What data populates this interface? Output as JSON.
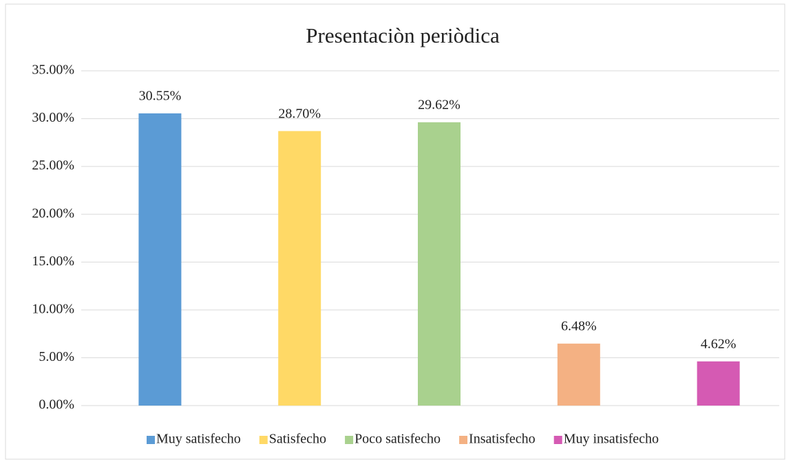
{
  "chart_data": {
    "type": "bar",
    "title": "Presentaciòn periòdica",
    "categories": [
      null
    ],
    "series": [
      {
        "name": "Muy satisfecho",
        "color": "#5b9bd5",
        "values": [
          30.55
        ],
        "value_labels": [
          "30.55%"
        ]
      },
      {
        "name": "Satisfecho",
        "color": "#ffd966",
        "values": [
          28.7
        ],
        "value_labels": [
          "28.70%"
        ]
      },
      {
        "name": "Poco satisfecho",
        "color": "#a9d18e",
        "values": [
          29.62
        ],
        "value_labels": [
          "29.62%"
        ]
      },
      {
        "name": "Insatisfecho",
        "color": "#f4b183",
        "values": [
          6.48
        ],
        "value_labels": [
          "6.48%"
        ]
      },
      {
        "name": "Muy insatisfecho",
        "color": "#d55ab3",
        "values": [
          4.62
        ],
        "value_labels": [
          "4.62%"
        ]
      }
    ],
    "ylim": [
      0,
      35
    ],
    "yticks": [
      {
        "value": 0,
        "label": "0.00%"
      },
      {
        "value": 5,
        "label": "5.00%"
      },
      {
        "value": 10,
        "label": "10.00%"
      },
      {
        "value": 15,
        "label": "15.00%"
      },
      {
        "value": 20,
        "label": "20.00%"
      },
      {
        "value": 25,
        "label": "25.00%"
      },
      {
        "value": 30,
        "label": "30.00%"
      },
      {
        "value": 35,
        "label": "35.00%"
      }
    ],
    "grid": true,
    "legend": "bottom"
  }
}
